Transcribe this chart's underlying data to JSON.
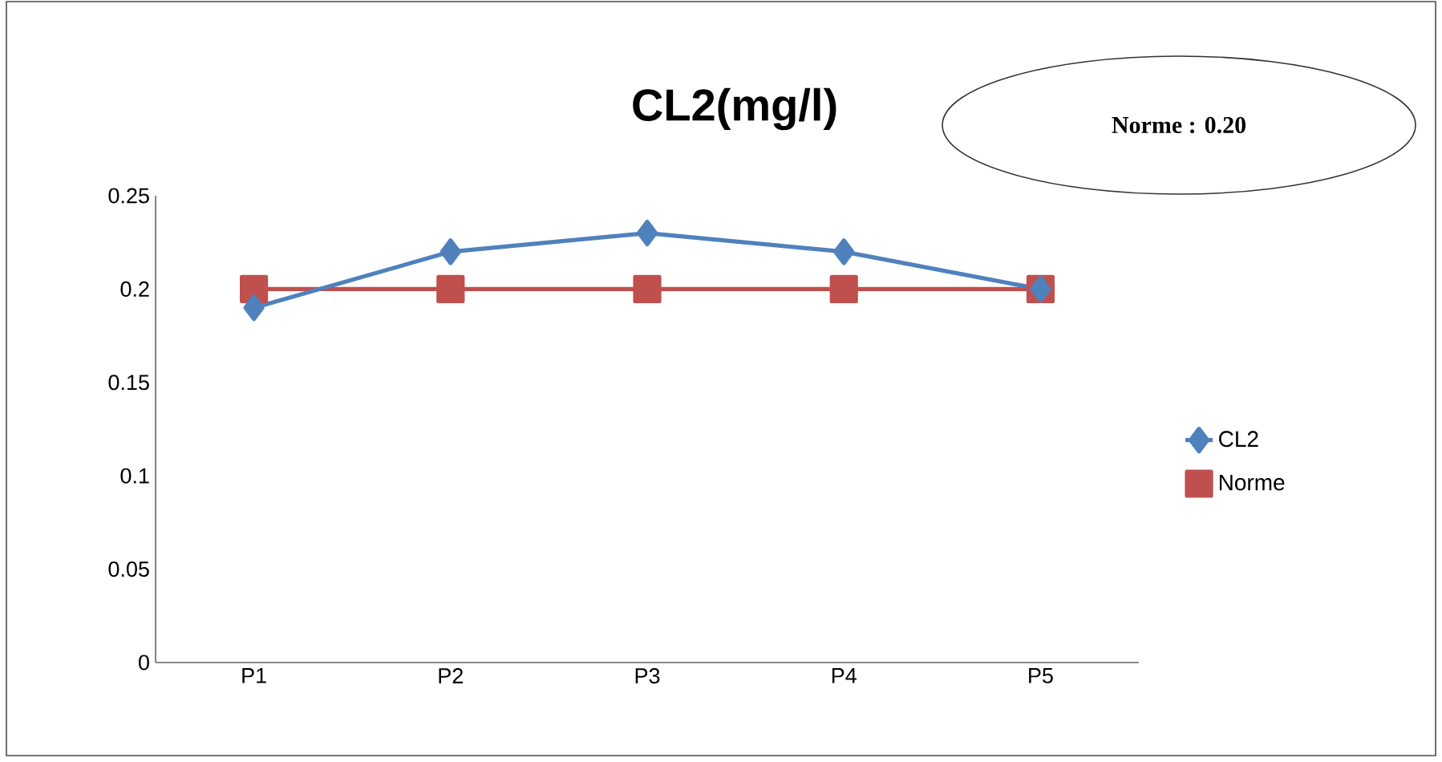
{
  "chart_data": {
    "type": "line",
    "title": "CL2(mg/l)",
    "categories": [
      "P1",
      "P2",
      "P3",
      "P4",
      "P5"
    ],
    "series": [
      {
        "name": "CL2",
        "color": "#4f81bd",
        "marker": "diamond",
        "values": [
          0.19,
          0.22,
          0.23,
          0.22,
          0.2
        ]
      },
      {
        "name": "Norme",
        "color": "#c0504d",
        "marker": "square",
        "values": [
          0.2,
          0.2,
          0.2,
          0.2,
          0.2
        ]
      }
    ],
    "ylim": [
      0,
      0.25
    ],
    "yticks": [
      0,
      0.05,
      0.1,
      0.15,
      0.2,
      0.25
    ],
    "legend": "right",
    "annotations": [
      "Norme : 0.20"
    ]
  }
}
